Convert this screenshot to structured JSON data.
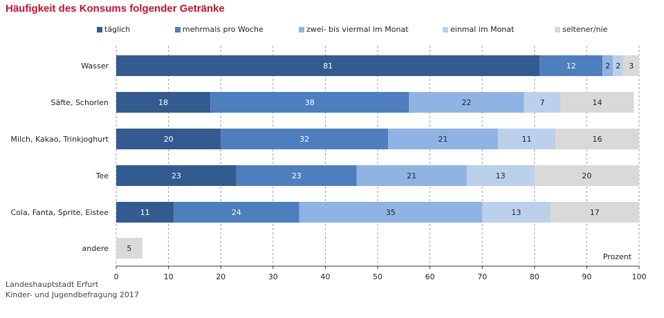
{
  "title": "Häufigkeit des Konsums folgender Getränke",
  "source": [
    "Landeshauptstadt Erfurt",
    "Kinder- und Jugendbefragung 2017"
  ],
  "chart_data": {
    "type": "bar",
    "orientation": "horizontal",
    "stacked": true,
    "title": "Häufigkeit des Konsums folgender Getränke",
    "unit_label": "Prozent",
    "categories": [
      "Wasser",
      "Säfte, Schorlen",
      "Milch, Kakao, Trinkjoghurt",
      "Tee",
      "Cola, Fanta, Sprite, Eistee",
      "andere"
    ],
    "series": [
      {
        "name": "täglich",
        "color": "#345b8f",
        "values": [
          81,
          18,
          20,
          23,
          11,
          null
        ]
      },
      {
        "name": "mehrmals pro Woche",
        "color": "#4d7fbf",
        "values": [
          12,
          38,
          32,
          23,
          24,
          null
        ]
      },
      {
        "name": "zwei- bis viermal im Monat",
        "color": "#8fb3e3",
        "values": [
          2,
          22,
          21,
          21,
          35,
          null
        ]
      },
      {
        "name": "einmal im Monat",
        "color": "#bad0eb",
        "values": [
          2,
          7,
          11,
          13,
          13,
          null
        ]
      },
      {
        "name": "seltener/nie",
        "color": "#d9d9d9",
        "values": [
          3,
          14,
          16,
          20,
          17,
          5
        ]
      }
    ],
    "xlim": [
      0,
      100
    ],
    "xticks": [
      0,
      10,
      20,
      30,
      40,
      50,
      60,
      70,
      80,
      90,
      100
    ],
    "grid": "vertical dashed",
    "legend_position": "top"
  }
}
